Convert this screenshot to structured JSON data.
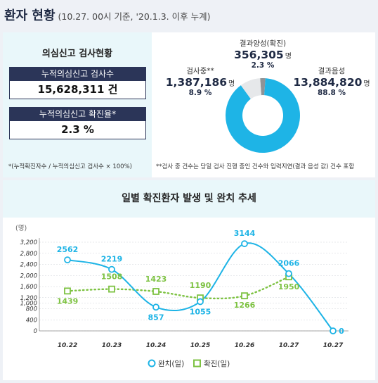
{
  "header": {
    "title": "환자 현황",
    "subtitle": "(10.27. 00시 기준, '20.1.3. 이후 누계)"
  },
  "left_panel": {
    "title": "의심신고 검사현황",
    "box1_label": "누적의심신고 검사수",
    "box1_value": "15,628,311 건",
    "box2_label": "누적의심신고 확진율*",
    "box2_value": "2.3 %",
    "note": "*(누적확진자수 / 누적의심신고 검사수 × 100%)"
  },
  "colors": {
    "primary": "#1eb4e6",
    "secondary": "#7dc242",
    "negative": "#1eb4e6",
    "testing": "#e6e8ea",
    "positive": "#8f9396",
    "navy": "#2b3558"
  },
  "chart_data": [
    {
      "type": "pie",
      "slices": [
        {
          "name": "결과음성",
          "value": 13884820,
          "display": "13,884,820",
          "unit": "명",
          "percent": "88.8 %"
        },
        {
          "name": "검사중**",
          "value": 1387186,
          "display": "1,387,186",
          "unit": "명",
          "percent": "8.9 %"
        },
        {
          "name": "결과양성(확진)",
          "value": 356305,
          "display": "356,305",
          "unit": "명",
          "percent": "2.3 %"
        }
      ],
      "note": "**검사 중 건수는 당일 검사 진행 중인 건수와 입력지연(결과 음성 값) 건수 포함"
    },
    {
      "type": "line",
      "title": "일별 확진환자 발생 및 완치 추세",
      "ylabel": "(명)",
      "categories": [
        "10.22",
        "10.23",
        "10.24",
        "10.25",
        "10.26",
        "10.27",
        "10.27"
      ],
      "ylim": [
        0,
        3200
      ],
      "yticks": [
        "0",
        "400",
        "800",
        "1,000",
        "1,200",
        "1,600",
        "2,000",
        "2,400",
        "2,800",
        "3,200"
      ],
      "ytick_values": [
        0,
        400,
        800,
        1000,
        1200,
        1600,
        2000,
        2400,
        2800,
        3200
      ],
      "series": [
        {
          "name": "완치(일)",
          "values": [
            2562,
            2219,
            857,
            1055,
            3144,
            2066,
            0
          ]
        },
        {
          "name": "확진(일)",
          "values": [
            1439,
            1508,
            1423,
            1190,
            1266,
            1950,
            null
          ]
        }
      ],
      "legend": "bottom"
    }
  ]
}
